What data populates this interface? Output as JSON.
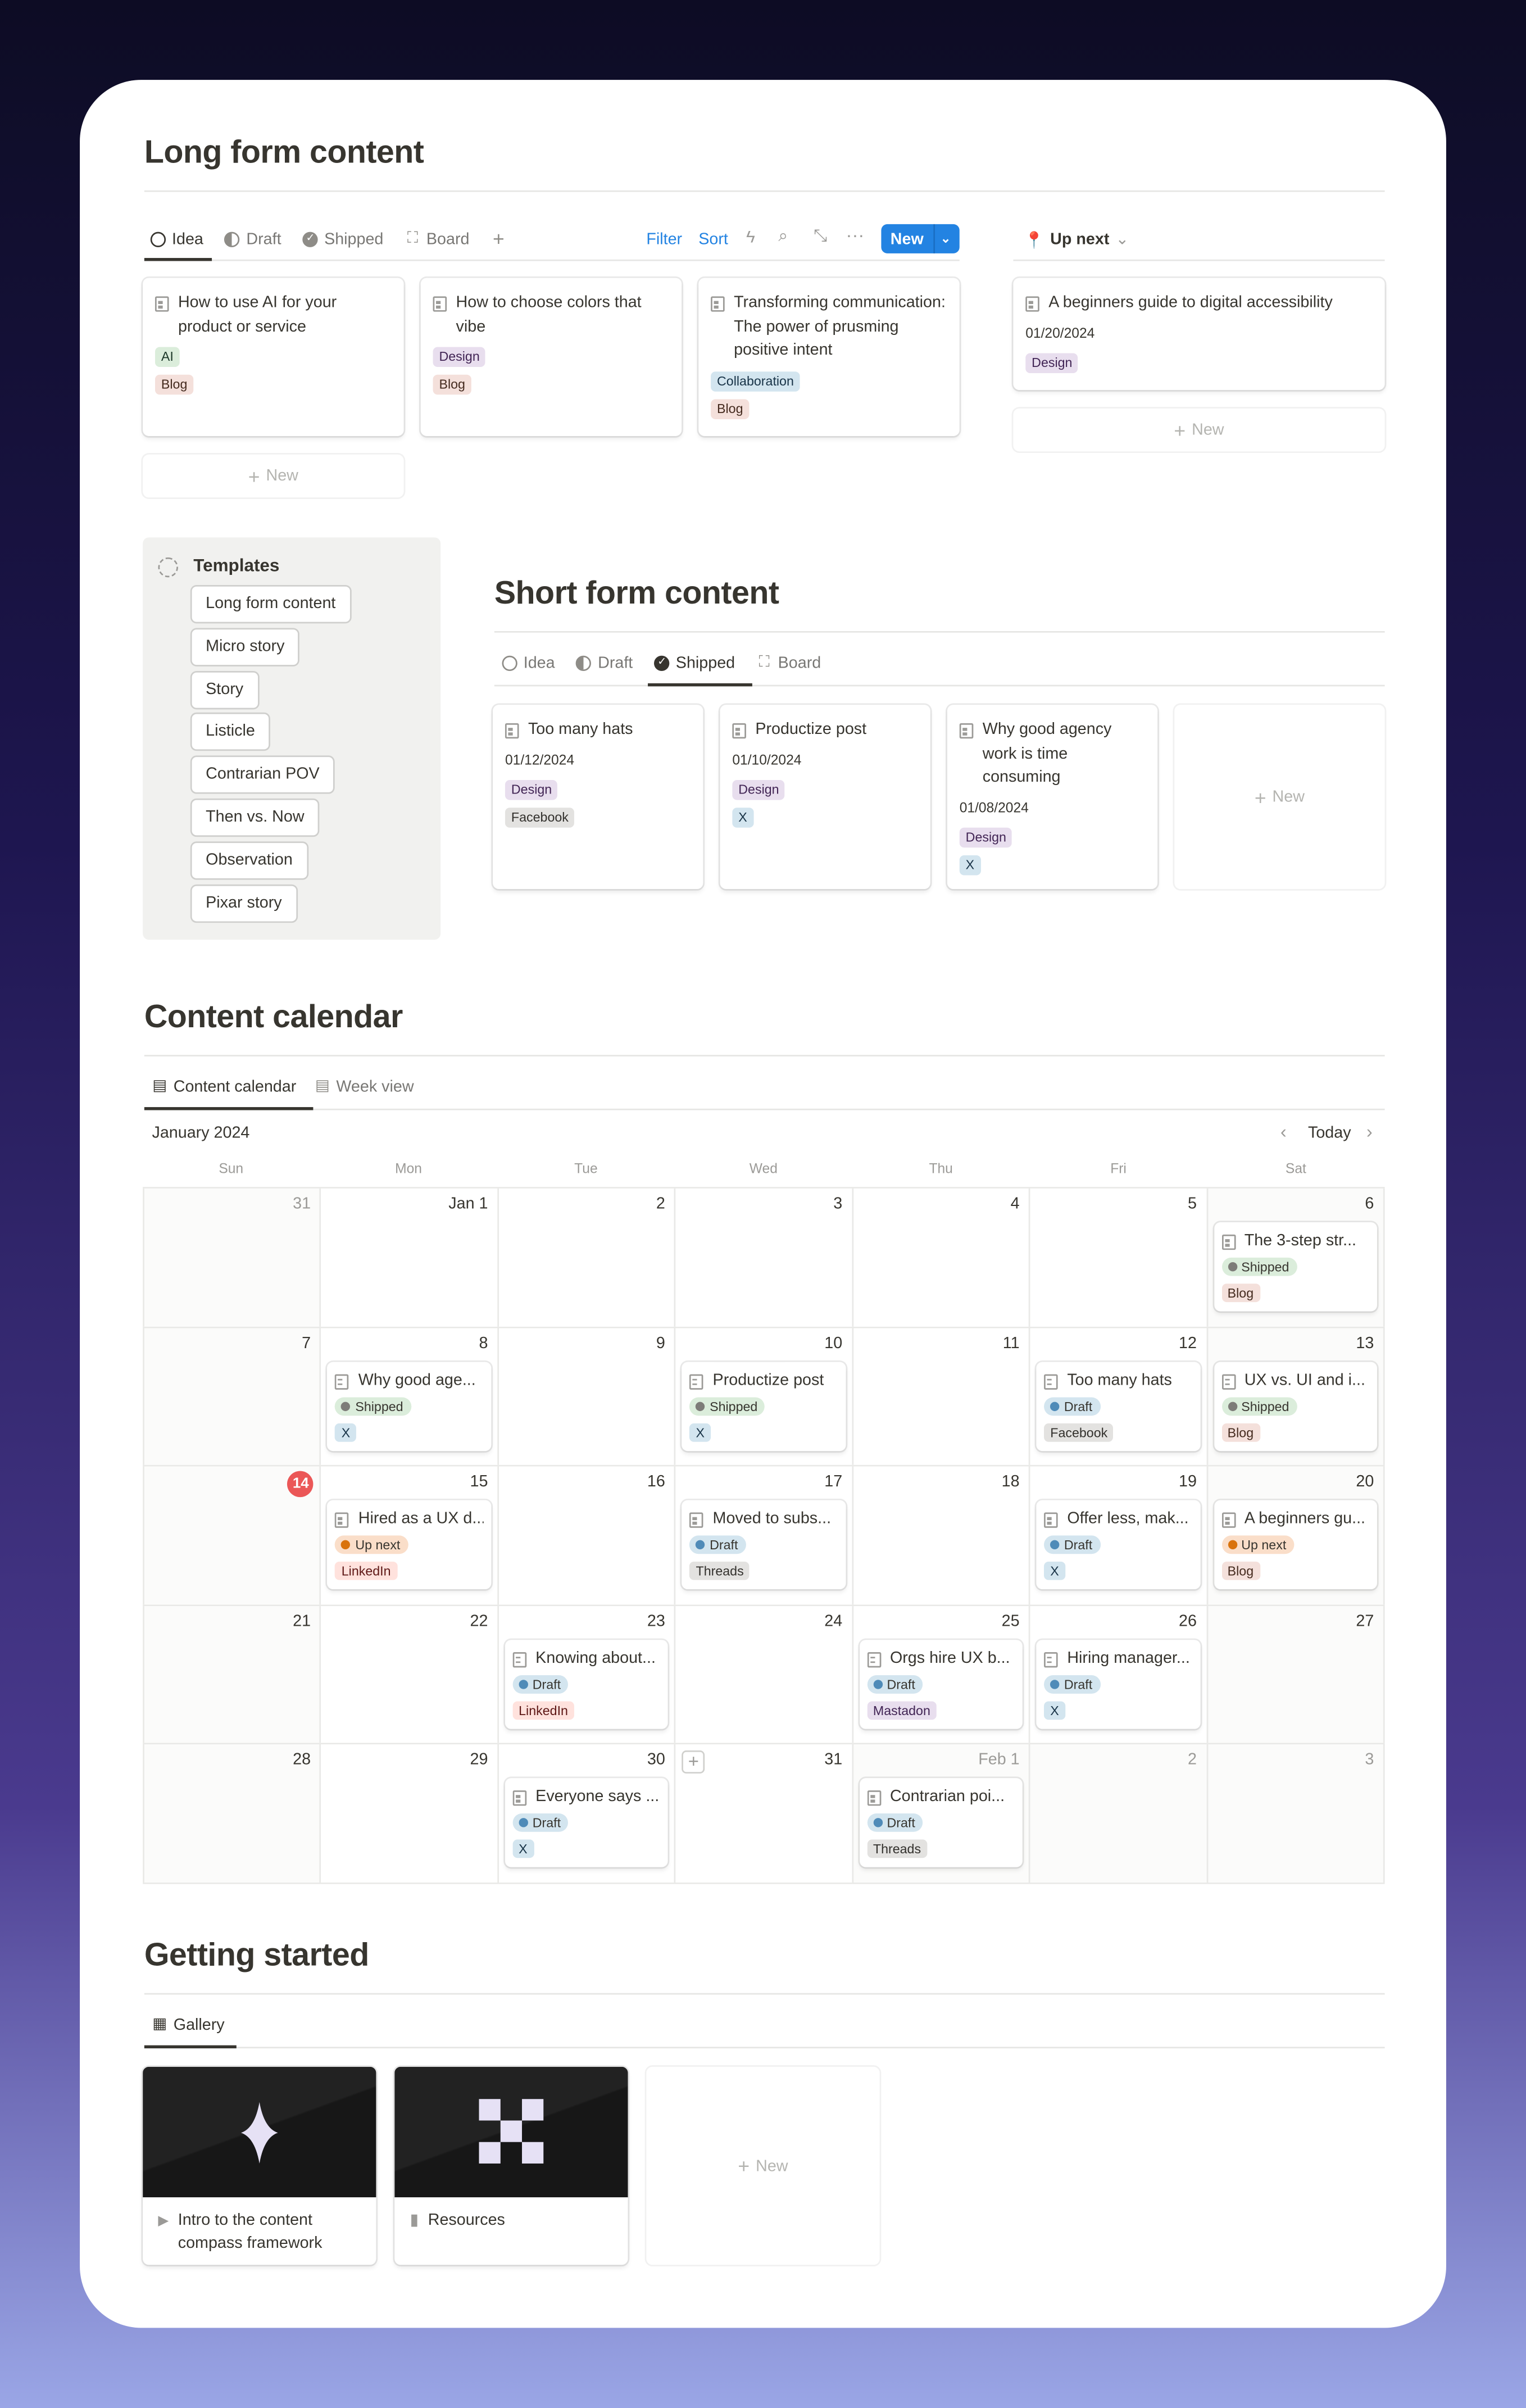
{
  "colors": {
    "accent": "#2383e2",
    "today": "#eb5757"
  },
  "tag_colors": {
    "AI": {
      "bg": "#dbeddb",
      "fg": "#1c3829"
    },
    "Blog": {
      "bg": "#f4e0db",
      "fg": "#442a1e"
    },
    "Design": {
      "bg": "#e8deee",
      "fg": "#412454"
    },
    "Collaboration": {
      "bg": "#d3e5ef",
      "fg": "#183347"
    },
    "X": {
      "bg": "#d3e5ef",
      "fg": "#183347"
    },
    "Facebook": {
      "bg": "#e3e2e0",
      "fg": "#32302c"
    },
    "LinkedIn": {
      "bg": "#ffe2dd",
      "fg": "#5d1715"
    },
    "Threads": {
      "bg": "#e3e2e0",
      "fg": "#32302c"
    },
    "Mastadon": {
      "bg": "#e8deee",
      "fg": "#412454"
    }
  },
  "status_colors": {
    "Shipped": {
      "bg": "#dbeddb",
      "dot": "#7d7c78"
    },
    "Draft": {
      "bg": "#d3e5ef",
      "dot": "#4f8bb8"
    },
    "Up next": {
      "bg": "#fadec9",
      "dot": "#d9730d"
    }
  },
  "long_form": {
    "title": "Long form content",
    "tabs": [
      {
        "label": "Idea",
        "icon": "circle-icon"
      },
      {
        "label": "Draft",
        "icon": "half-circle-icon"
      },
      {
        "label": "Shipped",
        "icon": "check-circle-icon"
      },
      {
        "label": "Board",
        "icon": "board-icon"
      }
    ],
    "toolbar": {
      "filter": "Filter",
      "sort": "Sort",
      "new": "New"
    },
    "cards": [
      {
        "title": "How to use AI for your product or service",
        "tags": [
          "AI",
          "Blog"
        ]
      },
      {
        "title": "How to choose colors that vibe",
        "tags": [
          "Design",
          "Blog"
        ]
      },
      {
        "title": "Transforming communication: The power of prusming positive intent",
        "tags": [
          "Collaboration",
          "Blog"
        ]
      }
    ],
    "new_label": "New",
    "up_next": {
      "label": "Up next",
      "card": {
        "title": "A beginners guide to digital accessibility",
        "date": "01/20/2024",
        "tags": [
          "Design"
        ]
      },
      "new_label": "New"
    }
  },
  "templates": {
    "title": "Templates",
    "items": [
      "Long form content",
      "Micro story",
      "Story",
      "Listicle",
      "Contrarian POV",
      "Then vs. Now",
      "Observation",
      "Pixar story"
    ]
  },
  "short_form": {
    "title": "Short form content",
    "tabs": [
      {
        "label": "Idea"
      },
      {
        "label": "Draft"
      },
      {
        "label": "Shipped"
      },
      {
        "label": "Board"
      }
    ],
    "cards": [
      {
        "title": "Too many hats",
        "date": "01/12/2024",
        "tags": [
          "Design",
          "Facebook"
        ]
      },
      {
        "title": "Productize post",
        "date": "01/10/2024",
        "tags": [
          "Design",
          "X"
        ]
      },
      {
        "title": "Why good agency work is time consuming",
        "date": "01/08/2024",
        "tags": [
          "Design",
          "X"
        ]
      }
    ],
    "new_label": "New"
  },
  "calendar": {
    "title": "Content calendar",
    "tabs": [
      "Content calendar",
      "Week view"
    ],
    "month": "January 2024",
    "today_label": "Today",
    "weekdays": [
      "Sun",
      "Mon",
      "Tue",
      "Wed",
      "Thu",
      "Fri",
      "Sat"
    ],
    "weeks": [
      [
        {
          "d": "31",
          "out": true
        },
        {
          "d": "Jan 1"
        },
        {
          "d": "2"
        },
        {
          "d": "3"
        },
        {
          "d": "4"
        },
        {
          "d": "5"
        },
        {
          "d": "6",
          "ev": {
            "title": "The 3-step str...",
            "status": "Shipped",
            "tag": "Blog"
          }
        }
      ],
      [
        {
          "d": "7"
        },
        {
          "d": "8",
          "ev": {
            "title": "Why good age...",
            "status": "Shipped",
            "tag": "X"
          }
        },
        {
          "d": "9"
        },
        {
          "d": "10",
          "ev": {
            "title": "Productize post",
            "status": "Shipped",
            "tag": "X"
          }
        },
        {
          "d": "11"
        },
        {
          "d": "12",
          "ev": {
            "title": "Too many hats",
            "status": "Draft",
            "tag": "Facebook"
          }
        },
        {
          "d": "13",
          "ev": {
            "title": "UX vs. UI and i...",
            "status": "Shipped",
            "tag": "Blog"
          }
        }
      ],
      [
        {
          "d": "14",
          "today": true
        },
        {
          "d": "15",
          "ev": {
            "title": "Hired as a UX d...",
            "status": "Up next",
            "tag": "LinkedIn"
          }
        },
        {
          "d": "16"
        },
        {
          "d": "17",
          "ev": {
            "title": "Moved to subs...",
            "status": "Draft",
            "tag": "Threads"
          }
        },
        {
          "d": "18"
        },
        {
          "d": "19",
          "ev": {
            "title": "Offer less, mak...",
            "status": "Draft",
            "tag": "X"
          }
        },
        {
          "d": "20",
          "ev": {
            "title": "A beginners gu...",
            "status": "Up next",
            "tag": "Blog"
          }
        }
      ],
      [
        {
          "d": "21"
        },
        {
          "d": "22"
        },
        {
          "d": "23",
          "ev": {
            "title": "Knowing about...",
            "status": "Draft",
            "tag": "LinkedIn"
          }
        },
        {
          "d": "24"
        },
        {
          "d": "25",
          "ev": {
            "title": "Orgs hire UX b...",
            "status": "Draft",
            "tag": "Mastadon"
          }
        },
        {
          "d": "26",
          "ev": {
            "title": "Hiring manager...",
            "status": "Draft",
            "tag": "X"
          }
        },
        {
          "d": "27"
        }
      ],
      [
        {
          "d": "28"
        },
        {
          "d": "29"
        },
        {
          "d": "30",
          "ev": {
            "title": "Everyone says ...",
            "status": "Draft",
            "tag": "X"
          }
        },
        {
          "d": "31",
          "add": true
        },
        {
          "d": "Feb 1",
          "out": true,
          "ev": {
            "title": "Contrarian poi...",
            "status": "Draft",
            "tag": "Threads"
          }
        },
        {
          "d": "2",
          "out": true
        },
        {
          "d": "3",
          "out": true
        }
      ]
    ]
  },
  "getting_started": {
    "title": "Getting started",
    "tab": "Gallery",
    "cards": [
      {
        "title": "Intro to the content compass framework",
        "icon": "play-triangle-icon"
      },
      {
        "title": "Resources",
        "icon": "book-icon"
      }
    ],
    "new_label": "New"
  }
}
